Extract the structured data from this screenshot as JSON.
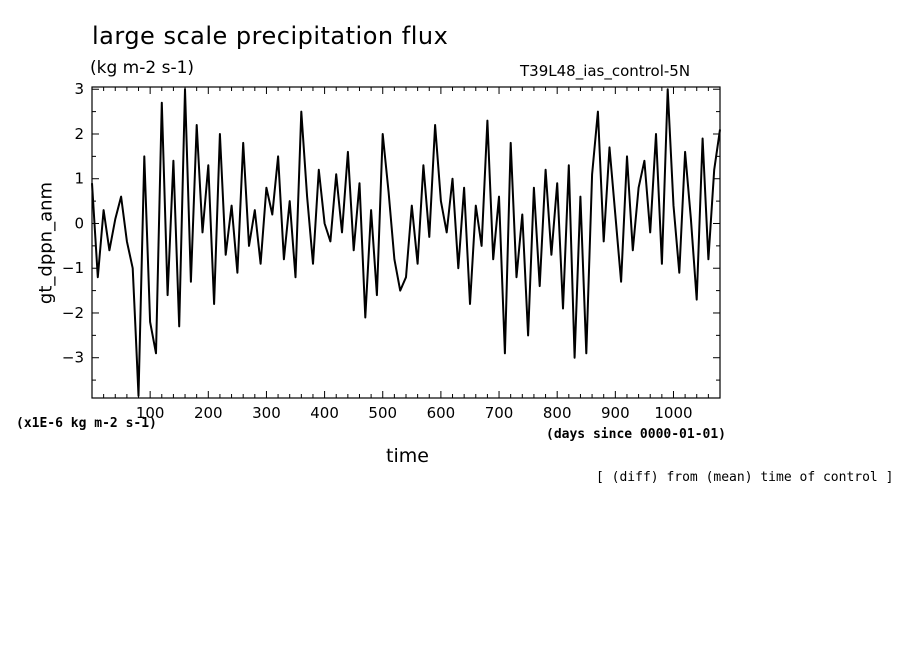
{
  "chart_data": {
    "type": "line",
    "title": "large scale precipitation flux",
    "units": "(kg m-2 s-1)",
    "run_name": "T39L48_ias_control-5N",
    "ylabel": "gt_dppn_anm",
    "xlabel": "time",
    "scale_note": "(x1E-6 kg m-2 s-1)",
    "x_units": "(days since 0000-01-01)",
    "footnote": "[ (diff) from (mean) time of control ]",
    "xlim": [
      0,
      1080
    ],
    "ylim": [
      -3.9,
      3.05
    ],
    "x_ticks": [
      100,
      200,
      300,
      400,
      500,
      600,
      700,
      800,
      900,
      1000
    ],
    "y_ticks": [
      -3,
      -2,
      -1,
      0,
      1,
      2,
      3
    ],
    "grid": false,
    "series": [
      {
        "color": "#000000",
        "x": [
          0,
          10,
          20,
          30,
          40,
          50,
          60,
          70,
          75,
          80,
          90,
          100,
          110,
          120,
          130,
          140,
          150,
          160,
          170,
          180,
          190,
          200,
          210,
          220,
          230,
          240,
          250,
          260,
          270,
          280,
          290,
          300,
          310,
          320,
          330,
          340,
          350,
          360,
          370,
          380,
          390,
          400,
          410,
          420,
          430,
          440,
          450,
          460,
          470,
          480,
          490,
          500,
          510,
          520,
          530,
          540,
          550,
          560,
          570,
          580,
          590,
          600,
          610,
          620,
          630,
          640,
          650,
          660,
          670,
          680,
          690,
          700,
          710,
          720,
          730,
          740,
          750,
          760,
          770,
          780,
          790,
          800,
          810,
          820,
          830,
          840,
          850,
          860,
          870,
          880,
          890,
          900,
          910,
          920,
          930,
          940,
          950,
          960,
          970,
          980,
          990,
          1000,
          1010,
          1020,
          1030,
          1040,
          1050,
          1060,
          1070,
          1080
        ],
        "values": [
          0.9,
          -1.2,
          0.3,
          -0.6,
          0.1,
          0.6,
          -0.4,
          -1.0,
          -2.4,
          -3.85,
          1.5,
          -2.2,
          -2.9,
          2.7,
          -1.6,
          1.4,
          -2.3,
          3.0,
          -1.3,
          2.2,
          -0.2,
          1.3,
          -1.8,
          2.0,
          -0.7,
          0.4,
          -1.1,
          1.8,
          -0.5,
          0.3,
          -0.9,
          0.8,
          0.2,
          1.5,
          -0.8,
          0.5,
          -1.2,
          2.5,
          0.6,
          -0.9,
          1.2,
          0.0,
          -0.4,
          1.1,
          -0.2,
          1.6,
          -0.6,
          0.9,
          -2.1,
          0.3,
          -1.6,
          2.0,
          0.7,
          -0.8,
          -1.5,
          -1.2,
          0.4,
          -0.9,
          1.3,
          -0.3,
          2.2,
          0.5,
          -0.2,
          1.0,
          -1.0,
          0.8,
          -1.8,
          0.4,
          -0.5,
          2.3,
          -0.8,
          0.6,
          -2.9,
          1.8,
          -1.2,
          0.2,
          -2.5,
          0.8,
          -1.4,
          1.2,
          -0.7,
          0.9,
          -1.9,
          1.3,
          -3.0,
          0.6,
          -2.9,
          1.1,
          2.5,
          -0.4,
          1.7,
          0.2,
          -1.3,
          1.5,
          -0.6,
          0.8,
          1.4,
          -0.2,
          2.0,
          -0.9,
          3.0,
          0.4,
          -1.1,
          1.6,
          0.1,
          -1.7,
          1.9,
          -0.8,
          1.2,
          2.1
        ]
      }
    ]
  }
}
